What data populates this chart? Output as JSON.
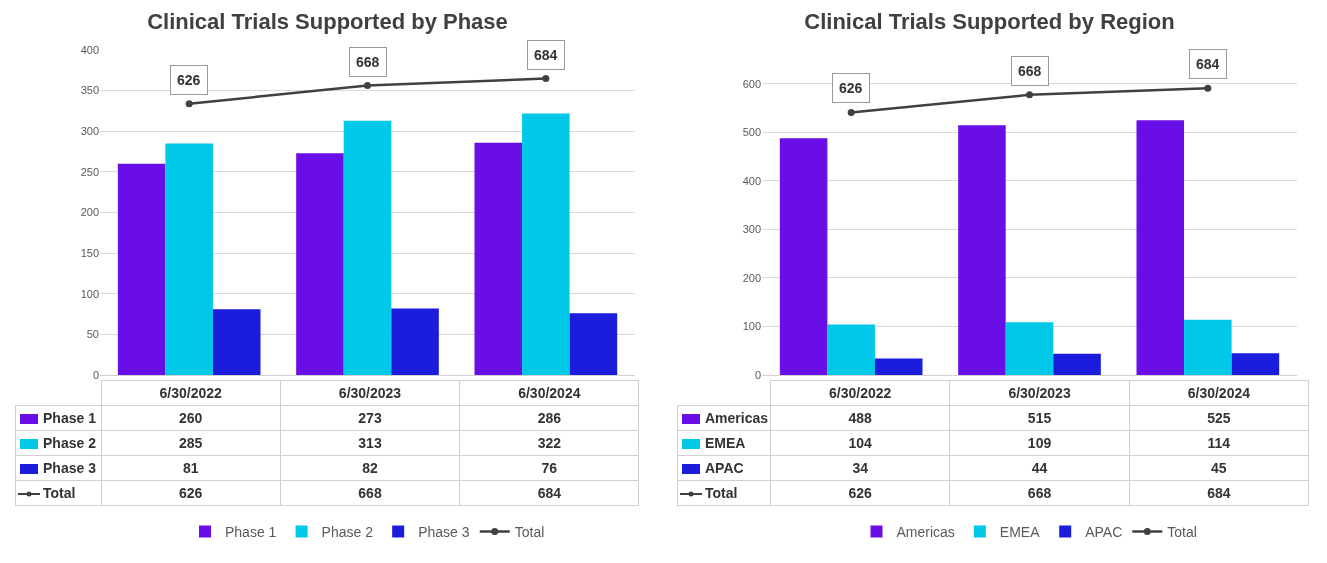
{
  "chart_data": [
    {
      "type": "bar",
      "title": "Clinical Trials Supported by Phase",
      "categories": [
        "6/30/2022",
        "6/30/2023",
        "6/30/2024"
      ],
      "series": [
        {
          "name": "Phase 1",
          "color": "#6a0ee8",
          "values": [
            260,
            273,
            286
          ]
        },
        {
          "name": "Phase 2",
          "color": "#00c8e8",
          "values": [
            285,
            313,
            322
          ]
        },
        {
          "name": "Phase 3",
          "color": "#1c1cdc",
          "values": [
            81,
            82,
            76
          ]
        },
        {
          "name": "Total",
          "type": "line",
          "axis": "y2",
          "color": "#404040",
          "values": [
            626,
            668,
            684
          ]
        }
      ],
      "annotations": [
        "626",
        "668",
        "684"
      ],
      "ylim": [
        0,
        400
      ],
      "yticks": [
        0,
        50,
        100,
        150,
        200,
        250,
        300,
        350,
        400
      ],
      "y2lim": [
        0,
        750
      ],
      "grid": "y",
      "legend": "bottom",
      "marker": "circle",
      "data_labels": true
    },
    {
      "type": "bar",
      "title": "Clinical Trials Supported by Region",
      "categories": [
        "6/30/2022",
        "6/30/2023",
        "6/30/2024"
      ],
      "series": [
        {
          "name": "Americas",
          "color": "#6a0ee8",
          "values": [
            488,
            515,
            525
          ]
        },
        {
          "name": "EMEA",
          "color": "#00c8e8",
          "values": [
            104,
            109,
            114
          ]
        },
        {
          "name": "APAC",
          "color": "#1c1cdc",
          "values": [
            34,
            44,
            45
          ]
        },
        {
          "name": "Total",
          "type": "line",
          "axis": "y2",
          "color": "#404040",
          "values": [
            626,
            668,
            684
          ]
        }
      ],
      "annotations": [
        "626",
        "668",
        "684"
      ],
      "ylim": [
        0,
        670
      ],
      "yticks": [
        0,
        100,
        200,
        300,
        400,
        500,
        600
      ],
      "y2lim": [
        0,
        775
      ],
      "grid": "y",
      "legend": "bottom",
      "marker": "circle",
      "data_labels": true
    }
  ]
}
